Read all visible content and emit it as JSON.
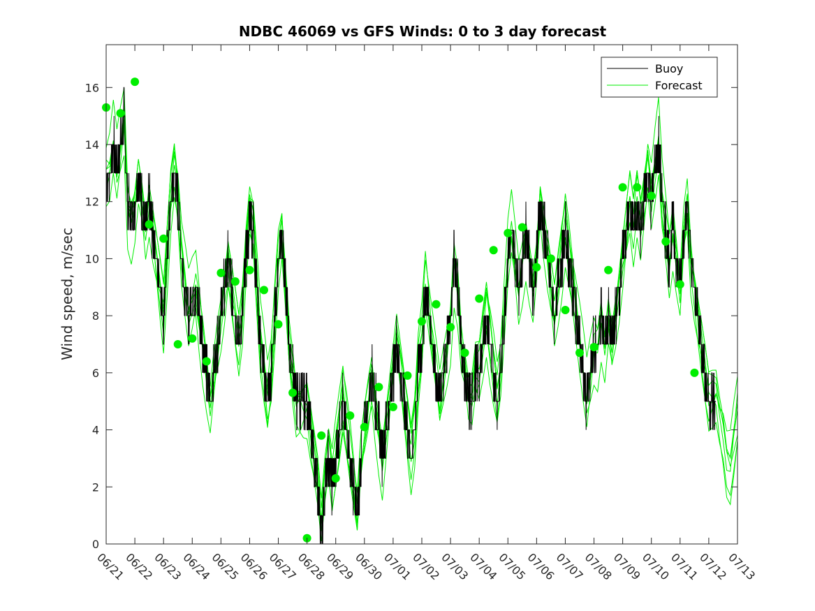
{
  "chart_data": {
    "type": "line",
    "title": "NDBC 46069 vs GFS Winds: 0 to 3 day forecast",
    "xlabel": "",
    "ylabel": "Wind speed, m/sec",
    "xlim": [
      "06/21",
      "07/13"
    ],
    "ylim": [
      0,
      17.5
    ],
    "x_tick_labels": [
      "06/21",
      "06/22",
      "06/23",
      "06/24",
      "06/25",
      "06/26",
      "06/27",
      "06/28",
      "06/29",
      "06/30",
      "07/01",
      "07/02",
      "07/03",
      "07/04",
      "07/05",
      "07/06",
      "07/07",
      "07/08",
      "07/09",
      "07/10",
      "07/11",
      "07/12",
      "07/13"
    ],
    "y_ticks": [
      0,
      2,
      4,
      6,
      8,
      10,
      12,
      14,
      16
    ],
    "grid": false,
    "legend_position": "top-right",
    "colors": {
      "buoy": "#000000",
      "forecast": "#00ee00"
    },
    "buoy": {
      "name": "Buoy",
      "points": [
        [
          "06/21 00:00",
          12.7
        ],
        [
          "06/21 03:00",
          13
        ],
        [
          "06/21 06:00",
          14
        ],
        [
          "06/21 09:00",
          13
        ],
        [
          "06/21 12:00",
          14
        ],
        [
          "06/21 15:00",
          15
        ],
        [
          "06/21 18:00",
          12
        ],
        [
          "06/21 21:00",
          11.5
        ],
        [
          "06/22 00:00",
          12
        ],
        [
          "06/22 03:00",
          13
        ],
        [
          "06/22 06:00",
          12
        ],
        [
          "06/22 09:00",
          11
        ],
        [
          "06/22 12:00",
          12
        ],
        [
          "06/22 15:00",
          11
        ],
        [
          "06/22 18:00",
          10
        ],
        [
          "06/22 21:00",
          9
        ],
        [
          "06/23 00:00",
          8
        ],
        [
          "06/23 03:00",
          10
        ],
        [
          "06/23 06:00",
          12
        ],
        [
          "06/23 09:00",
          13
        ],
        [
          "06/23 12:00",
          12
        ],
        [
          "06/23 15:00",
          10
        ],
        [
          "06/23 18:00",
          9
        ],
        [
          "06/23 21:00",
          8
        ],
        [
          "06/24 00:00",
          8.5
        ],
        [
          "06/24 03:00",
          9
        ],
        [
          "06/24 06:00",
          8
        ],
        [
          "06/24 09:00",
          7
        ],
        [
          "06/24 12:00",
          6
        ],
        [
          "06/24 15:00",
          5
        ],
        [
          "06/24 18:00",
          6
        ],
        [
          "06/24 21:00",
          7
        ],
        [
          "06/25 00:00",
          8
        ],
        [
          "06/25 03:00",
          9
        ],
        [
          "06/25 06:00",
          10
        ],
        [
          "06/25 09:00",
          9
        ],
        [
          "06/25 12:00",
          8
        ],
        [
          "06/25 15:00",
          7
        ],
        [
          "06/25 18:00",
          8
        ],
        [
          "06/25 21:00",
          10
        ],
        [
          "06/26 00:00",
          11.5
        ],
        [
          "06/26 03:00",
          11
        ],
        [
          "06/26 06:00",
          9
        ],
        [
          "06/26 09:00",
          7
        ],
        [
          "06/26 12:00",
          6
        ],
        [
          "06/26 15:00",
          5
        ],
        [
          "06/26 18:00",
          6
        ],
        [
          "06/26 21:00",
          8
        ],
        [
          "06/27 00:00",
          10
        ],
        [
          "06/27 03:00",
          11
        ],
        [
          "06/27 06:00",
          9
        ],
        [
          "06/27 09:00",
          7
        ],
        [
          "06/27 12:00",
          6
        ],
        [
          "06/27 15:00",
          5
        ],
        [
          "06/27 18:00",
          5
        ],
        [
          "06/27 21:00",
          5
        ],
        [
          "06/28 00:00",
          5
        ],
        [
          "06/28 03:00",
          4
        ],
        [
          "06/28 06:00",
          3
        ],
        [
          "06/28 09:00",
          2
        ],
        [
          "06/28 12:00",
          0.5
        ],
        [
          "06/28 15:00",
          2
        ],
        [
          "06/28 18:00",
          3
        ],
        [
          "06/28 21:00",
          2
        ],
        [
          "06/29 00:00",
          3
        ],
        [
          "06/29 03:00",
          4
        ],
        [
          "06/29 06:00",
          5
        ],
        [
          "06/29 09:00",
          4
        ],
        [
          "06/29 12:00",
          3
        ],
        [
          "06/29 15:00",
          2
        ],
        [
          "06/29 18:00",
          1
        ],
        [
          "06/29 21:00",
          3
        ],
        [
          "06/30 00:00",
          4
        ],
        [
          "06/30 03:00",
          5
        ],
        [
          "06/30 06:00",
          6
        ],
        [
          "06/30 09:00",
          5
        ],
        [
          "06/30 12:00",
          4
        ],
        [
          "06/30 15:00",
          3
        ],
        [
          "06/30 18:00",
          4
        ],
        [
          "06/30 21:00",
          5
        ],
        [
          "07/01 00:00",
          6
        ],
        [
          "07/01 03:00",
          7
        ],
        [
          "07/01 06:00",
          6
        ],
        [
          "07/01 09:00",
          5
        ],
        [
          "07/01 12:00",
          4
        ],
        [
          "07/01 15:00",
          3
        ],
        [
          "07/01 18:00",
          4
        ],
        [
          "07/01 21:00",
          6
        ],
        [
          "07/02 00:00",
          7
        ],
        [
          "07/02 03:00",
          9
        ],
        [
          "07/02 06:00",
          8
        ],
        [
          "07/02 09:00",
          7
        ],
        [
          "07/02 12:00",
          6
        ],
        [
          "07/02 15:00",
          5
        ],
        [
          "07/02 18:00",
          6
        ],
        [
          "07/02 21:00",
          7
        ],
        [
          "07/03 00:00",
          8
        ],
        [
          "07/03 03:00",
          10
        ],
        [
          "07/03 06:00",
          9
        ],
        [
          "07/03 09:00",
          7
        ],
        [
          "07/03 12:00",
          6
        ],
        [
          "07/03 15:00",
          5
        ],
        [
          "07/03 18:00",
          5
        ],
        [
          "07/03 21:00",
          6
        ],
        [
          "07/04 00:00",
          6
        ],
        [
          "07/04 03:00",
          7
        ],
        [
          "07/04 06:00",
          8
        ],
        [
          "07/04 09:00",
          7
        ],
        [
          "07/04 12:00",
          6
        ],
        [
          "07/04 15:00",
          5
        ],
        [
          "07/04 18:00",
          6
        ],
        [
          "07/04 21:00",
          8
        ],
        [
          "07/05 00:00",
          10
        ],
        [
          "07/05 03:00",
          11
        ],
        [
          "07/05 06:00",
          10
        ],
        [
          "07/05 09:00",
          9
        ],
        [
          "07/05 12:00",
          10
        ],
        [
          "07/05 15:00",
          11
        ],
        [
          "07/05 18:00",
          10
        ],
        [
          "07/05 21:00",
          9
        ],
        [
          "07/06 00:00",
          10
        ],
        [
          "07/06 03:00",
          12
        ],
        [
          "07/06 06:00",
          11
        ],
        [
          "07/06 09:00",
          10
        ],
        [
          "07/06 12:00",
          9
        ],
        [
          "07/06 15:00",
          8
        ],
        [
          "07/06 18:00",
          9
        ],
        [
          "07/06 21:00",
          10
        ],
        [
          "07/07 00:00",
          11
        ],
        [
          "07/07 03:00",
          10
        ],
        [
          "07/07 06:00",
          9
        ],
        [
          "07/07 09:00",
          8
        ],
        [
          "07/07 12:00",
          7
        ],
        [
          "07/07 15:00",
          6
        ],
        [
          "07/07 18:00",
          5
        ],
        [
          "07/07 21:00",
          6
        ],
        [
          "07/08 00:00",
          7
        ],
        [
          "07/08 03:00",
          7
        ],
        [
          "07/08 06:00",
          8
        ],
        [
          "07/08 09:00",
          7
        ],
        [
          "07/08 12:00",
          8
        ],
        [
          "07/08 15:00",
          7
        ],
        [
          "07/08 18:00",
          8
        ],
        [
          "07/08 21:00",
          9
        ],
        [
          "07/09 00:00",
          10
        ],
        [
          "07/09 03:00",
          11
        ],
        [
          "07/09 06:00",
          12
        ],
        [
          "07/09 09:00",
          11
        ],
        [
          "07/09 12:00",
          12
        ],
        [
          "07/09 15:00",
          11
        ],
        [
          "07/09 18:00",
          12
        ],
        [
          "07/09 21:00",
          13
        ],
        [
          "07/10 00:00",
          12
        ],
        [
          "07/10 03:00",
          13
        ],
        [
          "07/10 06:00",
          14
        ],
        [
          "07/10 09:00",
          12
        ],
        [
          "07/10 12:00",
          11
        ],
        [
          "07/10 15:00",
          10
        ],
        [
          "07/10 18:00",
          11
        ],
        [
          "07/10 21:00",
          10
        ],
        [
          "07/11 00:00",
          9
        ],
        [
          "07/11 03:00",
          11
        ],
        [
          "07/11 06:00",
          12
        ],
        [
          "07/11 09:00",
          10
        ],
        [
          "07/11 12:00",
          9
        ],
        [
          "07/11 15:00",
          8
        ],
        [
          "07/11 18:00",
          7
        ],
        [
          "07/11 21:00",
          6
        ],
        [
          "07/12 00:00",
          5
        ],
        [
          "07/12 03:00",
          5
        ],
        [
          "07/12 06:00",
          5
        ]
      ]
    },
    "forecast_markers": {
      "name": "Forecast",
      "points": [
        [
          "06/21 00:00",
          15.3
        ],
        [
          "06/21 12:00",
          15.1
        ],
        [
          "06/22 00:00",
          16.2
        ],
        [
          "06/22 12:00",
          11.2
        ],
        [
          "06/23 00:00",
          10.7
        ],
        [
          "06/23 12:00",
          7.0
        ],
        [
          "06/24 00:00",
          7.2
        ],
        [
          "06/24 12:00",
          6.4
        ],
        [
          "06/25 00:00",
          9.5
        ],
        [
          "06/25 12:00",
          9.2
        ],
        [
          "06/26 00:00",
          9.6
        ],
        [
          "06/26 12:00",
          8.9
        ],
        [
          "06/27 00:00",
          7.7
        ],
        [
          "06/27 12:00",
          5.3
        ],
        [
          "06/28 00:00",
          0.2
        ],
        [
          "06/28 12:00",
          3.8
        ],
        [
          "06/29 00:00",
          2.3
        ],
        [
          "06/29 12:00",
          4.5
        ],
        [
          "06/30 00:00",
          4.1
        ],
        [
          "06/30 12:00",
          5.5
        ],
        [
          "07/01 00:00",
          4.8
        ],
        [
          "07/01 12:00",
          5.9
        ],
        [
          "07/02 00:00",
          7.8
        ],
        [
          "07/02 12:00",
          8.4
        ],
        [
          "07/03 00:00",
          7.6
        ],
        [
          "07/03 12:00",
          6.7
        ],
        [
          "07/04 00:00",
          8.6
        ],
        [
          "07/04 12:00",
          10.3
        ],
        [
          "07/05 00:00",
          10.9
        ],
        [
          "07/05 12:00",
          11.1
        ],
        [
          "07/06 00:00",
          9.7
        ],
        [
          "07/06 12:00",
          10.0
        ],
        [
          "07/07 00:00",
          8.2
        ],
        [
          "07/07 12:00",
          6.7
        ],
        [
          "07/08 00:00",
          6.9
        ],
        [
          "07/08 12:00",
          9.6
        ],
        [
          "07/09 00:00",
          12.5
        ],
        [
          "07/09 12:00",
          12.5
        ],
        [
          "07/10 00:00",
          12.2
        ],
        [
          "07/10 12:00",
          10.6
        ],
        [
          "07/11 00:00",
          9.1
        ],
        [
          "07/11 12:00",
          6.0
        ]
      ]
    }
  },
  "legend": {
    "buoy_label": "Buoy",
    "forecast_label": "Forecast"
  }
}
